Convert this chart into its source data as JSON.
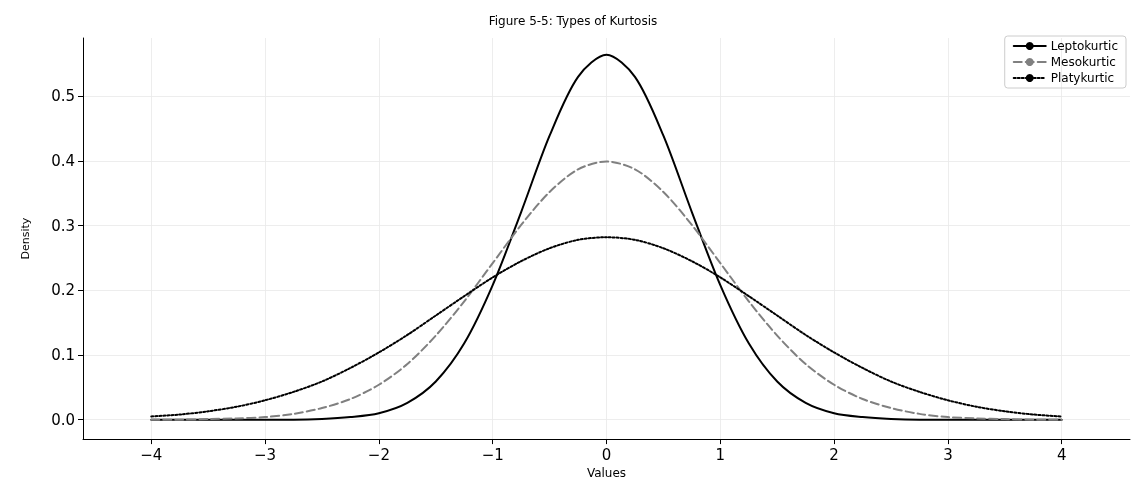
{
  "chart_data": {
    "type": "line",
    "title": "Figure 5-5: Types of Kurtosis",
    "xlabel": "Values",
    "ylabel": "Density",
    "x": [
      -4,
      -3.75,
      -3.5,
      -3.25,
      -3,
      -2.75,
      -2.5,
      -2.25,
      -2,
      -1.75,
      -1.5,
      -1.25,
      -1,
      -0.75,
      -0.5,
      -0.25,
      0,
      0.25,
      0.5,
      0.75,
      1,
      1.25,
      1.5,
      1.75,
      2,
      2.25,
      2.5,
      2.75,
      3,
      3.25,
      3.5,
      3.75,
      4
    ],
    "series": [
      {
        "name": "Leptokurtic",
        "color": "#000000",
        "line_style": "solid",
        "values": [
          0,
          0,
          0,
          0,
          0,
          0,
          0.001,
          0.004,
          0.01,
          0.026,
          0.059,
          0.118,
          0.208,
          0.321,
          0.439,
          0.53,
          0.564,
          0.53,
          0.439,
          0.321,
          0.208,
          0.118,
          0.059,
          0.026,
          0.01,
          0.004,
          0.001,
          0,
          0,
          0,
          0,
          0,
          0
        ]
      },
      {
        "name": "Mesokurtic",
        "color": "#808080",
        "line_style": "dashed",
        "values": [
          0,
          0,
          0.001,
          0.002,
          0.004,
          0.009,
          0.018,
          0.032,
          0.054,
          0.086,
          0.13,
          0.183,
          0.242,
          0.301,
          0.352,
          0.387,
          0.399,
          0.387,
          0.352,
          0.301,
          0.242,
          0.183,
          0.13,
          0.086,
          0.054,
          0.032,
          0.018,
          0.009,
          0.004,
          0.002,
          0.001,
          0,
          0
        ]
      },
      {
        "name": "Platykurtic",
        "color": "#000000",
        "line_style": "dotted",
        "values": [
          0.005,
          0.008,
          0.013,
          0.02,
          0.03,
          0.043,
          0.059,
          0.08,
          0.104,
          0.131,
          0.161,
          0.191,
          0.22,
          0.245,
          0.265,
          0.278,
          0.282,
          0.278,
          0.265,
          0.245,
          0.22,
          0.191,
          0.161,
          0.131,
          0.104,
          0.08,
          0.059,
          0.043,
          0.03,
          0.02,
          0.013,
          0.008,
          0.005
        ]
      }
    ],
    "xlim": [
      -4.6,
      4.6
    ],
    "xticks": [
      {
        "value": -4,
        "label": "−4"
      },
      {
        "value": -3,
        "label": "−3"
      },
      {
        "value": -2,
        "label": "−2"
      },
      {
        "value": -1,
        "label": "−1"
      },
      0,
      1,
      2,
      3,
      4
    ],
    "ylim": [
      -0.03,
      0.59
    ],
    "yticks": [
      {
        "value": 0,
        "label": "0.0"
      },
      0.1,
      0.2,
      0.3,
      0.4,
      0.5
    ],
    "grid": true,
    "legend": "top right",
    "marker": "none"
  }
}
